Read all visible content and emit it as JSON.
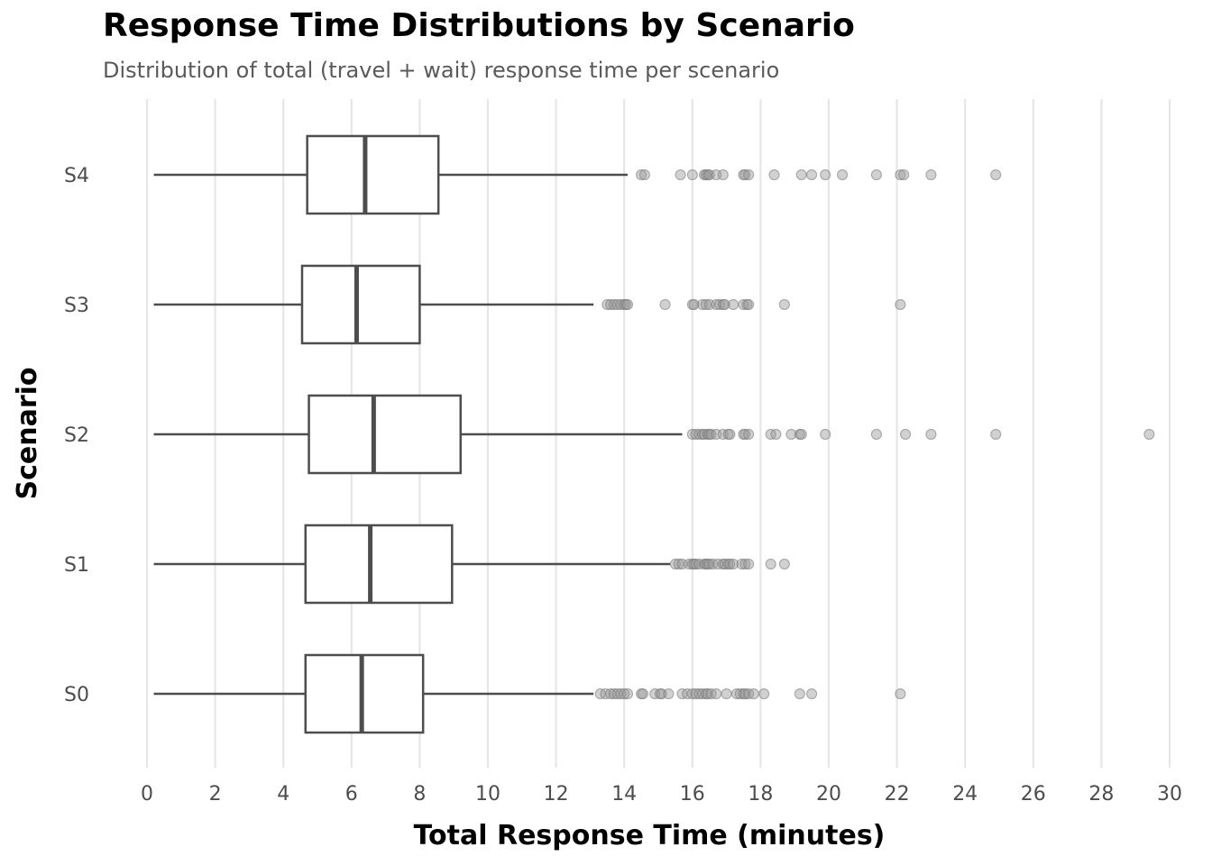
{
  "chart_data": {
    "type": "boxplot",
    "orientation": "horizontal",
    "title": "Response Time Distributions by Scenario",
    "subtitle": "Distribution of total (travel + wait) response time per scenario",
    "xlabel": "Total Response Time (minutes)",
    "ylabel": "Scenario",
    "xlim": [
      0,
      30
    ],
    "x_ticks": [
      "0",
      "2",
      "4",
      "6",
      "8",
      "10",
      "12",
      "14",
      "16",
      "18",
      "20",
      "22",
      "24",
      "26",
      "28",
      "30"
    ],
    "grid": "vertical",
    "categories": [
      "S4",
      "S3",
      "S2",
      "S1",
      "S0"
    ],
    "series": [
      {
        "category": "S4",
        "whisker_low": 0.2,
        "q1": 4.7,
        "median": 6.4,
        "q3": 8.55,
        "whisker_high": 14.1,
        "outliers": [
          14.5,
          14.6,
          15.65,
          16.0,
          16.35,
          16.4,
          16.45,
          16.5,
          16.7,
          16.9,
          17.5,
          17.55,
          17.65,
          18.4,
          19.2,
          19.5,
          19.9,
          20.4,
          21.4,
          22.1,
          22.2,
          23.0,
          24.9
        ]
      },
      {
        "category": "S3",
        "whisker_low": 0.2,
        "q1": 4.55,
        "median": 6.15,
        "q3": 8.0,
        "whisker_high": 13.1,
        "outliers": [
          13.5,
          13.6,
          13.7,
          13.8,
          13.9,
          14.0,
          14.05,
          14.1,
          15.2,
          16.0,
          16.05,
          16.3,
          16.4,
          16.5,
          16.7,
          16.8,
          16.9,
          16.95,
          17.2,
          17.5,
          17.6,
          17.65,
          18.7,
          22.1
        ]
      },
      {
        "category": "S2",
        "whisker_low": 0.2,
        "q1": 4.75,
        "median": 6.65,
        "q3": 9.2,
        "whisker_high": 15.7,
        "outliers": [
          16.0,
          16.1,
          16.2,
          16.3,
          16.35,
          16.45,
          16.5,
          16.55,
          16.7,
          16.9,
          17.05,
          17.1,
          17.5,
          17.55,
          17.65,
          18.3,
          18.45,
          18.9,
          19.15,
          19.2,
          19.9,
          21.4,
          22.25,
          23.0,
          24.9,
          29.4
        ]
      },
      {
        "category": "S1",
        "whisker_low": 0.2,
        "q1": 4.65,
        "median": 6.55,
        "q3": 8.95,
        "whisker_high": 15.35,
        "outliers": [
          15.5,
          15.6,
          15.7,
          15.9,
          16.0,
          16.05,
          16.1,
          16.2,
          16.35,
          16.4,
          16.45,
          16.5,
          16.6,
          16.75,
          16.9,
          16.95,
          17.05,
          17.1,
          17.2,
          17.45,
          17.55,
          17.65,
          18.3,
          18.7
        ]
      },
      {
        "category": "S0",
        "whisker_low": 0.2,
        "q1": 4.65,
        "median": 6.3,
        "q3": 8.1,
        "whisker_high": 13.1,
        "outliers": [
          13.3,
          13.45,
          13.6,
          13.7,
          13.8,
          13.9,
          14.0,
          14.1,
          14.5,
          14.55,
          14.9,
          15.05,
          15.1,
          15.3,
          15.7,
          15.85,
          16.0,
          16.1,
          16.2,
          16.3,
          16.4,
          16.45,
          16.55,
          16.7,
          17.0,
          17.3,
          17.4,
          17.5,
          17.55,
          17.65,
          17.8,
          18.1,
          19.15,
          19.5,
          22.1
        ]
      }
    ]
  }
}
